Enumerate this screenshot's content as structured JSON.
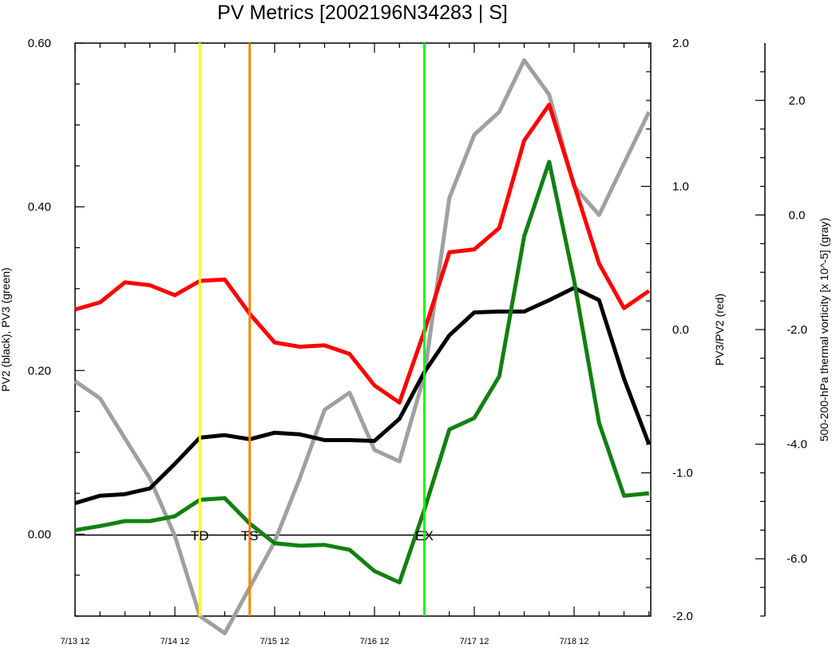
{
  "chart_data": {
    "type": "line",
    "title": "PV Metrics [2002196N34283 | S]",
    "x_tick_labels": [
      "7/13 12",
      "7/14 12",
      "7/15 12",
      "7/16 12",
      "7/17 12",
      "7/18 12"
    ],
    "left_axis": {
      "label": "PV2 (black), PV3 (green)",
      "ylim": [
        -0.1,
        0.6
      ],
      "ticks": [
        0.0,
        0.2,
        0.4,
        0.6
      ],
      "tick_labels": [
        "0.00",
        "0.20",
        "0.40",
        "0.60"
      ]
    },
    "right_axis": {
      "label": "PV3/PV2 (red)",
      "ylim": [
        -2.0,
        2.0
      ],
      "ticks": [
        -2.0,
        -1.0,
        0.0,
        1.0,
        2.0
      ],
      "tick_labels": [
        "-2.0",
        "-1.0",
        "0.0",
        "1.0",
        "2.0"
      ]
    },
    "far_right_axis": {
      "label": "500-200-hPa thermal vorticity [x 10^-5] (gray)",
      "ylim": [
        -7.0,
        3.0
      ],
      "ticks": [
        -6.0,
        -4.0,
        -2.0,
        0.0,
        2.0
      ],
      "tick_labels": [
        "-6.0",
        "-4.0",
        "-2.0",
        "0.0",
        "2.0"
      ]
    },
    "series": [
      {
        "axis": "left",
        "color": "#000000",
        "x": [
          0,
          0.25,
          0.5,
          0.75,
          1.0,
          1.25,
          1.5,
          1.75,
          2.0,
          2.25,
          2.5,
          2.75,
          3.0,
          3.25,
          3.5,
          3.75,
          4.0,
          4.25,
          4.5,
          4.75,
          5.0,
          5.25,
          5.5,
          5.75
        ],
        "values": [
          0.038,
          0.047,
          0.049,
          0.056,
          0.086,
          0.118,
          0.121,
          0.116,
          0.124,
          0.122,
          0.115,
          0.115,
          0.114,
          0.141,
          0.198,
          0.243,
          0.271,
          0.272,
          0.272,
          0.286,
          0.301,
          0.286,
          0.19,
          0.11
        ]
      },
      {
        "axis": "left",
        "color": "#118011",
        "x": [
          0,
          0.25,
          0.5,
          0.75,
          1.0,
          1.25,
          1.5,
          1.75,
          2.0,
          2.25,
          2.5,
          2.75,
          3.0,
          3.25,
          3.5,
          3.75,
          4.0,
          4.25,
          4.5,
          4.75,
          5.0,
          5.25,
          5.5,
          5.75
        ],
        "values": [
          0.005,
          0.01,
          0.016,
          0.016,
          0.022,
          0.042,
          0.044,
          0.013,
          -0.011,
          -0.014,
          -0.013,
          -0.019,
          -0.045,
          -0.059,
          0.03,
          0.128,
          0.142,
          0.193,
          0.364,
          0.455,
          0.31,
          0.136,
          0.047,
          0.05
        ]
      },
      {
        "axis": "right",
        "color": "#ff0000",
        "x": [
          0,
          0.25,
          0.5,
          0.75,
          1.0,
          1.25,
          1.5,
          1.75,
          2.0,
          2.25,
          2.5,
          2.75,
          3.0,
          3.25,
          3.5,
          3.75,
          4.0,
          4.25,
          4.5,
          4.75,
          5.0,
          5.25,
          5.5,
          5.75
        ],
        "values": [
          0.14,
          0.19,
          0.33,
          0.31,
          0.24,
          0.34,
          0.35,
          0.11,
          -0.09,
          -0.12,
          -0.11,
          -0.17,
          -0.39,
          -0.51,
          -0.01,
          0.54,
          0.56,
          0.71,
          1.32,
          1.57,
          1.01,
          0.46,
          0.15,
          0.27
        ]
      },
      {
        "axis": "far_right",
        "color": "#a0a0a0",
        "x": [
          0,
          0.25,
          0.5,
          0.75,
          1.0,
          1.25,
          1.5,
          1.75,
          2.0,
          2.25,
          2.5,
          2.75,
          3.0,
          3.25,
          3.5,
          3.75,
          4.0,
          4.25,
          4.5,
          4.75,
          5.0,
          5.25,
          5.5,
          5.75
        ],
        "values": [
          -2.9,
          -3.2,
          -3.9,
          -4.6,
          -5.6,
          -7.0,
          -7.3,
          -6.5,
          -5.7,
          -4.6,
          -3.4,
          -3.1,
          -4.1,
          -4.3,
          -2.8,
          0.3,
          1.4,
          1.8,
          2.7,
          2.1,
          0.5,
          0.0,
          0.9,
          1.8
        ]
      }
    ],
    "vertical_lines": [
      {
        "x": 1.25,
        "color": "#ffff00",
        "label": "TD"
      },
      {
        "x": 1.75,
        "color": "#ff8000",
        "label": "TS"
      },
      {
        "x": 3.5,
        "color": "#00ff00",
        "label": "EX"
      }
    ]
  }
}
